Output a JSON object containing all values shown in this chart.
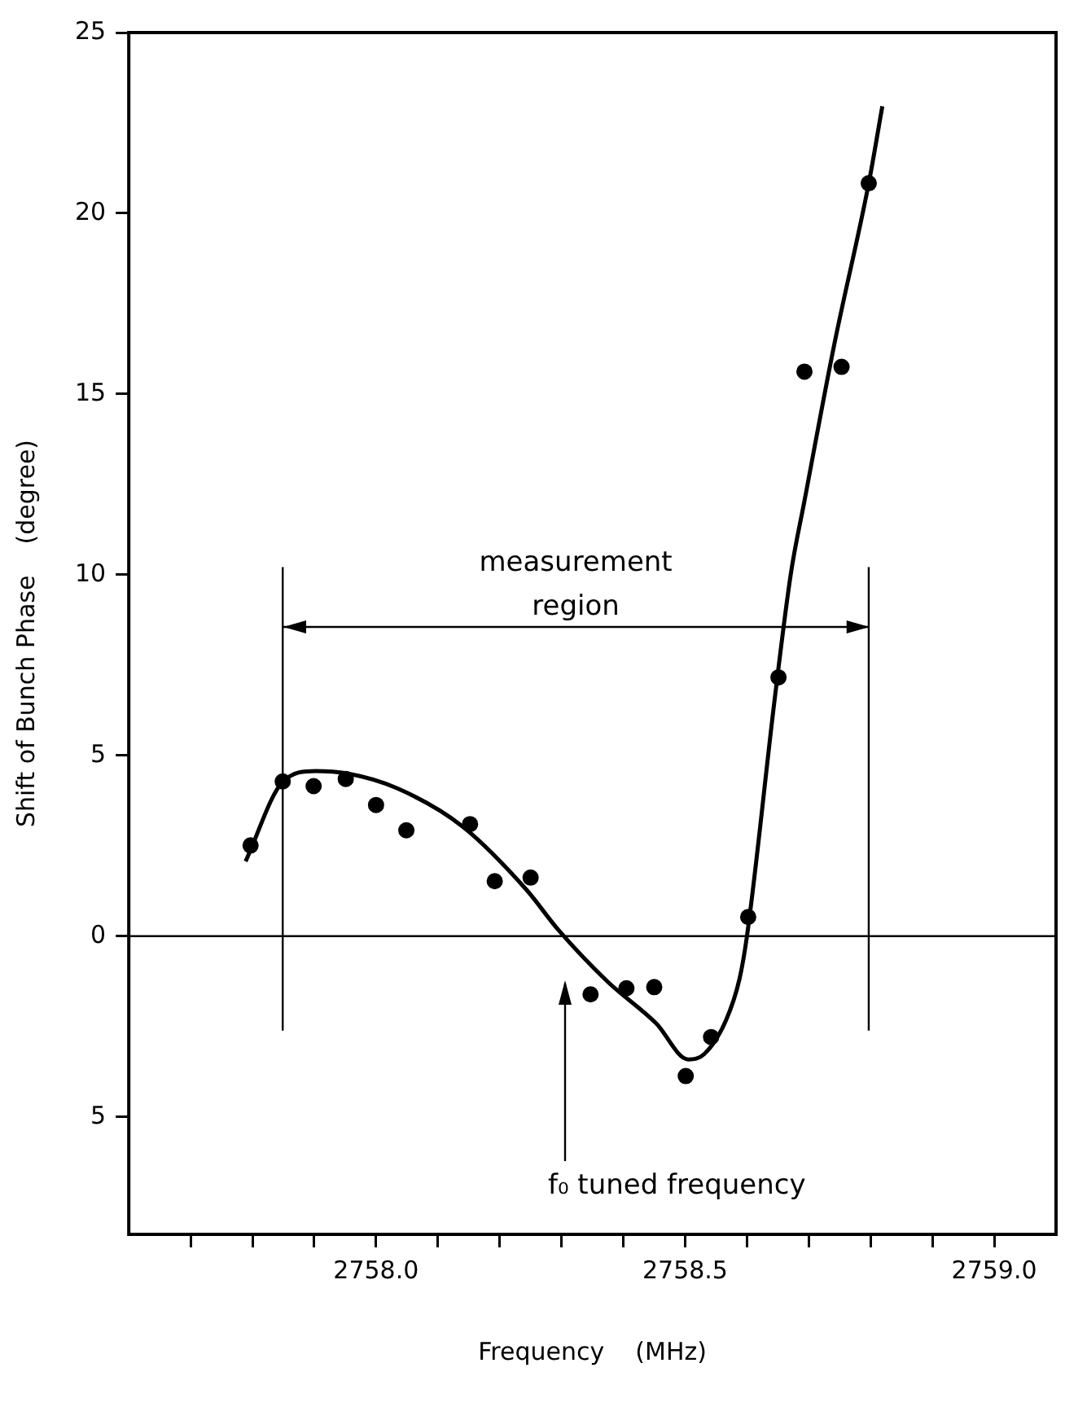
{
  "chart_data": {
    "type": "scatter",
    "xlabel": "Frequency    (MHz)",
    "ylabel": "Shift of Bunch Phase    (degree)",
    "xlim": [
      2757.6,
      2759.1
    ],
    "ylim": [
      -8.25,
      25
    ],
    "xticks": [
      {
        "value": 2757.7,
        "label": null
      },
      {
        "value": 2757.8,
        "label": null
      },
      {
        "value": 2757.9,
        "label": null
      },
      {
        "value": 2758,
        "label": "2758.0"
      },
      {
        "value": 2758.1,
        "label": null
      },
      {
        "value": 2758.2,
        "label": null
      },
      {
        "value": 2758.3,
        "label": null
      },
      {
        "value": 2758.4,
        "label": null
      },
      2758.5,
      {
        "value": 2758.6,
        "label": null
      },
      {
        "value": 2758.7,
        "label": null
      },
      {
        "value": 2758.8,
        "label": null
      },
      {
        "value": 2758.9,
        "label": null
      },
      {
        "value": 2759,
        "label": "2759.0"
      }
    ],
    "yticks": [
      {
        "value": -5,
        "label": "5"
      },
      0,
      5,
      10,
      15,
      20,
      25
    ],
    "grid": false,
    "legend": false,
    "series": [
      {
        "marker": "circle",
        "color": "#000000",
        "x": [
          2757.797,
          2757.849,
          2757.899,
          2757.951,
          2758.0,
          2758.049,
          2758.152,
          2758.192,
          2758.25,
          2758.347,
          2758.405,
          2758.45,
          2758.501,
          2758.542,
          2758.602,
          2758.651,
          2758.693,
          2758.753,
          2758.797
        ],
        "values": [
          2.51,
          4.28,
          4.15,
          4.35,
          3.63,
          2.93,
          3.1,
          1.52,
          1.62,
          -1.61,
          -1.44,
          -1.41,
          -3.87,
          -2.79,
          0.53,
          7.16,
          15.62,
          15.75,
          20.83
        ]
      },
      {
        "type": "line",
        "marker": "none",
        "line_style": "solid",
        "color": "#000000",
        "x": [
          2757.789,
          2757.849,
          2757.902,
          2757.954,
          2758.033,
          2758.138,
          2758.243,
          2758.295,
          2758.374,
          2758.453,
          2758.505,
          2758.531,
          2758.566,
          2758.588,
          2758.6,
          2758.645,
          2758.671,
          2758.693,
          2758.741,
          2758.797,
          2758.819
        ],
        "values": [
          2.07,
          4.27,
          4.57,
          4.5,
          4.1,
          3.06,
          1.29,
          0.17,
          -1.25,
          -2.41,
          -3.41,
          -3.26,
          -2.33,
          -1.18,
          0,
          6.58,
          10.03,
          12.04,
          16.35,
          20.83,
          22.96
        ]
      }
    ],
    "ref_lines": [
      {
        "axis": "y",
        "value": 0,
        "color": "#000000"
      },
      {
        "axis": "x",
        "value": 2757.849,
        "color": "#000000"
      },
      {
        "axis": "x",
        "value": 2758.797,
        "color": "#000000"
      }
    ],
    "annotations": [
      "measurement\nregion",
      "f₀ tuned frequency"
    ]
  }
}
